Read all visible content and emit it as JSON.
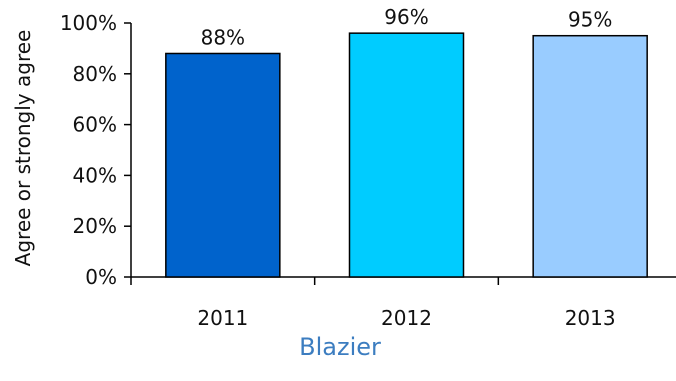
{
  "chart_data": {
    "type": "bar",
    "categories": [
      "2011",
      "2012",
      "2013"
    ],
    "values": [
      88,
      96,
      95
    ],
    "data_labels": [
      "88%",
      "96%",
      "95%"
    ],
    "bar_colors": [
      "#0063CC",
      "#00CCFF",
      "#99CCFF"
    ],
    "ylabel": "Agree or strongly agree",
    "ylim": [
      0,
      100
    ],
    "yticks": [
      0,
      20,
      40,
      60,
      80,
      100
    ],
    "ytick_labels": [
      "0%",
      "20%",
      "40%",
      "60%",
      "80%",
      "100%"
    ],
    "grid": false,
    "legend": "none",
    "caption": "Blazier",
    "caption_color": "#3C7DC0"
  }
}
